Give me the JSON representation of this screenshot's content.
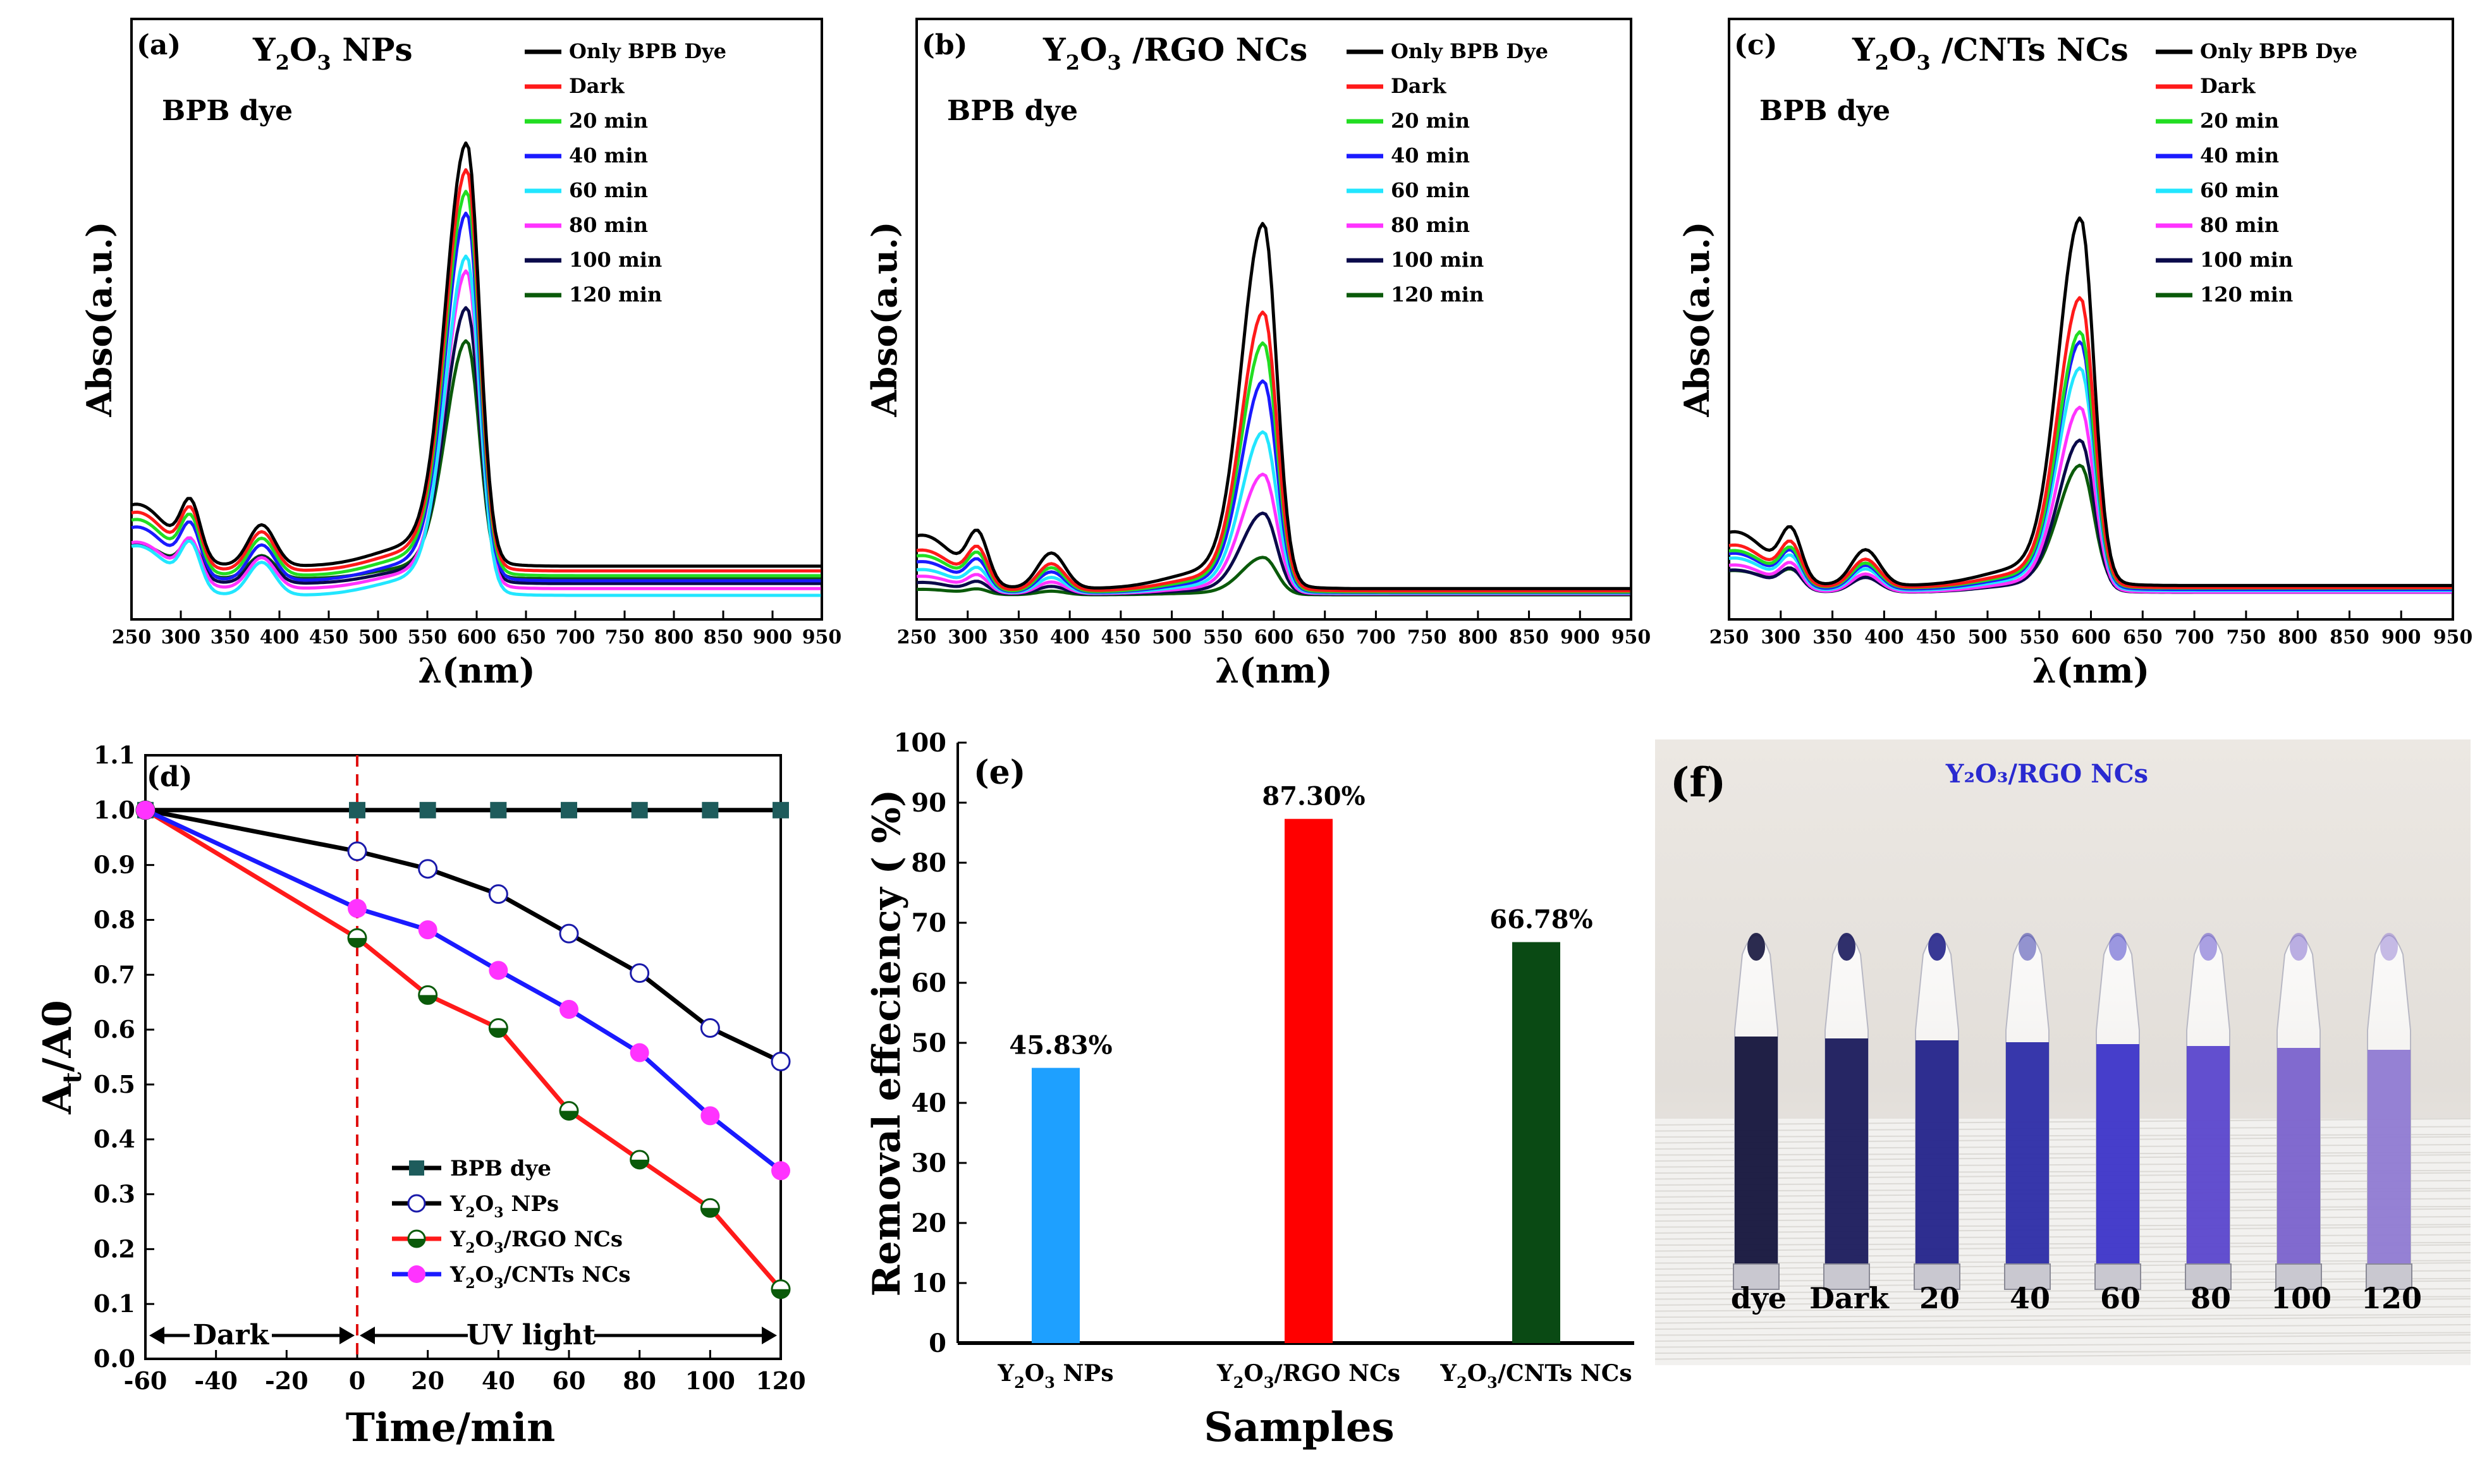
{
  "spectra_panels": [
    {
      "label": "(a)",
      "title": "Y2O3 NPs",
      "title_parts": {
        "prefix": "Y",
        "sub1": "2",
        "mid": "O",
        "sub2": "3",
        "suffix": " NPs"
      },
      "note": "BPB dye",
      "ylabel": "Abso(a.u.)",
      "xlabel": "λ(nm)",
      "xticks": [
        250,
        300,
        350,
        400,
        450,
        500,
        550,
        600,
        650,
        700,
        750,
        800,
        850,
        900,
        950
      ],
      "xlim": [
        250,
        950
      ],
      "peak_heights": [
        0.882,
        0.836,
        0.801,
        0.766,
        0.707,
        0.662,
        0.575,
        0.496
      ],
      "baselines": [
        0.104,
        0.087,
        0.07,
        0.052,
        0.0,
        0.024,
        0.042,
        0.059
      ]
    },
    {
      "label": "(b)",
      "title": "Y2O3 /RGO NCs",
      "title_parts": {
        "prefix": "Y",
        "sub1": "2",
        "mid": "O",
        "sub2": "3",
        "suffix": " /RGO NCs"
      },
      "note": "BPB dye",
      "ylabel": "Abso(a.u.)",
      "xlabel": "λ(nm)",
      "xticks": [
        250,
        300,
        350,
        400,
        450,
        500,
        550,
        600,
        650,
        700,
        750,
        800,
        850,
        900,
        950
      ],
      "xlim": [
        250,
        950
      ],
      "peak_heights": [
        0.761,
        0.581,
        0.519,
        0.441,
        0.336,
        0.249,
        0.169,
        0.078
      ],
      "baselines": [
        0.024,
        0.016,
        0.012,
        0.01,
        0.008,
        0.006,
        0.004,
        0.002
      ]
    },
    {
      "label": "(c)",
      "title": "Y2O3 /CNTs  NCs",
      "title_parts": {
        "prefix": "Y",
        "sub1": "2",
        "mid": "O",
        "sub2": "3",
        "suffix": " /CNTs  NCs"
      },
      "note": "BPB dye",
      "ylabel": "Abso(a.u.)",
      "xlabel": "λ(nm)",
      "xticks": [
        250,
        300,
        350,
        400,
        450,
        500,
        550,
        600,
        650,
        700,
        750,
        800,
        850,
        900,
        950
      ],
      "xlim": [
        250,
        950
      ],
      "peak_heights": [
        0.766,
        0.604,
        0.534,
        0.516,
        0.464,
        0.385,
        0.317,
        0.257
      ],
      "baselines": [
        0.035,
        0.028,
        0.026,
        0.021,
        0.017,
        0.012,
        0.011,
        0.024
      ]
    }
  ],
  "spectra_legend": [
    "Only BPB Dye",
    "Dark",
    "20 min",
    "40 min",
    "60 min",
    "80 min",
    "100 min",
    "120 min"
  ],
  "spectra_colors": [
    "#000000",
    "#ff1a1a",
    "#22dd22",
    "#1a1aff",
    "#22e6ff",
    "#ff33ff",
    "#0a0a4a",
    "#0a5a0a"
  ],
  "chart_data": [
    {
      "type": "line",
      "title": "(d)",
      "xlabel": "Time/min",
      "ylabel": "At/A0",
      "ylabel_parts": {
        "base": "A",
        "sub": "t",
        "rest": "/A0"
      },
      "xlim": [
        -60,
        120
      ],
      "ylim": [
        0,
        1.1
      ],
      "xticks": [
        -60,
        -40,
        -20,
        0,
        20,
        40,
        60,
        80,
        100,
        120
      ],
      "yticks": [
        0.0,
        0.1,
        0.2,
        0.3,
        0.4,
        0.5,
        0.6,
        0.7,
        0.8,
        0.9,
        1.0,
        1.1
      ],
      "x": [
        -60,
        0,
        20,
        40,
        60,
        80,
        100,
        120
      ],
      "series": [
        {
          "name": "BPB dye",
          "values": [
            1.0,
            1.0,
            1.0,
            1.0,
            1.0,
            1.0,
            1.0,
            1.0
          ],
          "color": "#000000",
          "marker_color": "#1e5c5c"
        },
        {
          "name": "Y2O3 NPs",
          "values": [
            1.0,
            0.925,
            0.893,
            0.847,
            0.775,
            0.703,
            0.603,
            0.542
          ],
          "color": "#000000",
          "marker_color": "#1a1aaa"
        },
        {
          "name": "Y2O3/RGO NCs",
          "values": [
            1.0,
            0.767,
            0.663,
            0.603,
            0.452,
            0.363,
            0.275,
            0.127
          ],
          "color": "#ff1a1a",
          "marker_color": "#0a5a0a"
        },
        {
          "name": "Y2O3/CNTs NCs",
          "values": [
            1.0,
            0.821,
            0.782,
            0.708,
            0.637,
            0.558,
            0.443,
            0.343
          ],
          "color": "#1a1aff",
          "marker_color": "#ff33ff"
        }
      ],
      "legend_parts": [
        {
          "a": "BPB dye",
          "sub": "",
          "b": ""
        },
        {
          "a": "Y",
          "sub": "2",
          "b": "O",
          "sub2": "3",
          "c": " NPs"
        },
        {
          "a": "Y",
          "sub": "2",
          "b": "O",
          "sub2": "3",
          "c": "/RGO NCs"
        },
        {
          "a": "Y",
          "sub": "2",
          "b": "O",
          "sub2": "3",
          "c": "/CNTs NCs"
        }
      ],
      "annotations": {
        "dark": "Dark",
        "uv": "UV light"
      }
    },
    {
      "type": "bar",
      "title": "(e)",
      "xlabel": "Samples",
      "ylabel": "Removal effeciency ( %)",
      "ylim": [
        0,
        100
      ],
      "yticks": [
        0,
        10,
        20,
        30,
        40,
        50,
        60,
        70,
        80,
        90,
        100
      ],
      "categories": [
        "Y2O3 NPs",
        "Y2O3/RGO NCs",
        "Y2O3/CNTs NCs"
      ],
      "category_parts": [
        {
          "a": "Y",
          "sub": "2",
          "b": "O",
          "sub2": "3",
          "c": " NPs"
        },
        {
          "a": "Y",
          "sub": "2",
          "b": "O",
          "sub2": "3",
          "c": "/RGO NCs"
        },
        {
          "a": "Y",
          "sub": "2",
          "b": "O",
          "sub2": "3",
          "c": "/CNTs NCs"
        }
      ],
      "values": [
        45.83,
        87.3,
        66.78
      ],
      "value_labels": [
        "45.83%",
        "87.30%",
        "66.78%"
      ],
      "colors": [
        "#1ea0ff",
        "#ff0000",
        "#0a4a14"
      ]
    }
  ],
  "photo_panel": {
    "label": "(f)",
    "title": "Y₂O₃/RGO NCs",
    "vial_labels": [
      "dye",
      "Dark",
      "20",
      "40",
      "60",
      "80",
      "100",
      "120"
    ],
    "vial_colors": [
      "#14143c",
      "#1a1a5c",
      "#23238a",
      "#2c2ca6",
      "#3c34c8",
      "#5a46cc",
      "#7a62cc",
      "#8f7ad2"
    ]
  }
}
